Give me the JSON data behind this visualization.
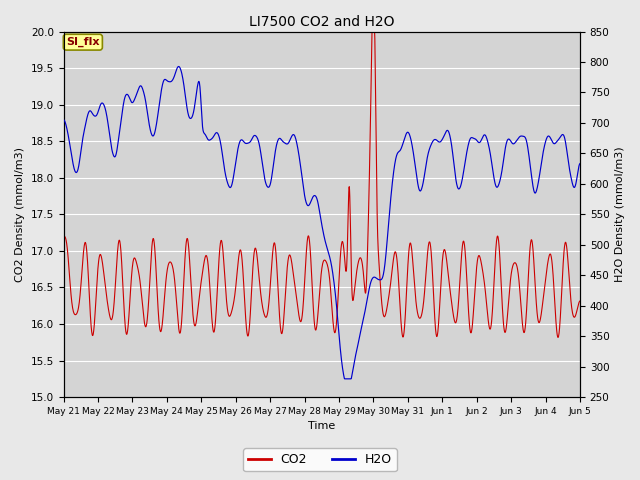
{
  "title": "LI7500 CO2 and H2O",
  "xlabel": "Time",
  "ylabel_left": "CO2 Density (mmol/m3)",
  "ylabel_right": "H2O Density (mmol/m3)",
  "co2_color": "#cc0000",
  "h2o_color": "#0000cc",
  "ylim_left": [
    15.0,
    20.0
  ],
  "ylim_right": [
    250,
    850
  ],
  "fig_bg_color": "#e8e8e8",
  "plot_bg_color": "#d4d4d4",
  "grid_color": "#ffffff",
  "annotation_text": "SI_flx",
  "annotation_facecolor": "#ffff99",
  "annotation_edgecolor": "#888800",
  "annotation_textcolor": "#880000",
  "legend_entries": [
    "CO2",
    "H2O"
  ],
  "x_tick_labels": [
    "May 21",
    "May 22",
    "May 23",
    "May 24",
    "May 25",
    "May 26",
    "May 27",
    "May 28",
    "May 29",
    "May 30",
    "May 31",
    "Jun 1",
    "Jun 2",
    "Jun 3",
    "Jun 4",
    "Jun 5"
  ],
  "yticks_left": [
    15.0,
    15.5,
    16.0,
    16.5,
    17.0,
    17.5,
    18.0,
    18.5,
    19.0,
    19.5,
    20.0
  ],
  "yticks_right": [
    250,
    300,
    350,
    400,
    450,
    500,
    550,
    600,
    650,
    700,
    750,
    800,
    850
  ],
  "n_points": 2000,
  "time_days": 15
}
